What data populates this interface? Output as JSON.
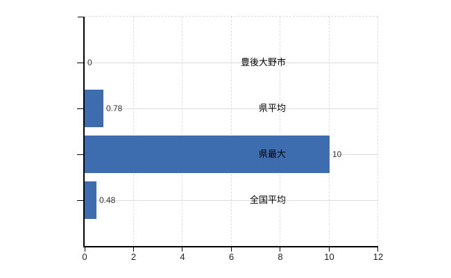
{
  "chart_data": {
    "type": "bar",
    "orientation": "horizontal",
    "title": "",
    "xlabel": "",
    "ylabel": "",
    "categories": [
      "豊後大野市",
      "県平均",
      "県最大",
      "全国平均"
    ],
    "values": [
      0,
      0.78,
      10,
      0.48
    ],
    "value_labels": [
      "0",
      "0.78",
      "10",
      "0.48"
    ],
    "x_ticks": [
      0,
      2,
      4,
      6,
      8,
      10,
      12
    ],
    "xlim": [
      0,
      12
    ],
    "grid": true,
    "legend": false,
    "colors": {
      "bar": "#3d6daf",
      "grid_horizontal": "#dcdcdc",
      "grid_vertical": "#dddddd",
      "axis": "#000000",
      "value_text": "#333333",
      "category_text": "#000000",
      "tick_text": "#222222",
      "background": "#ffffff"
    }
  }
}
